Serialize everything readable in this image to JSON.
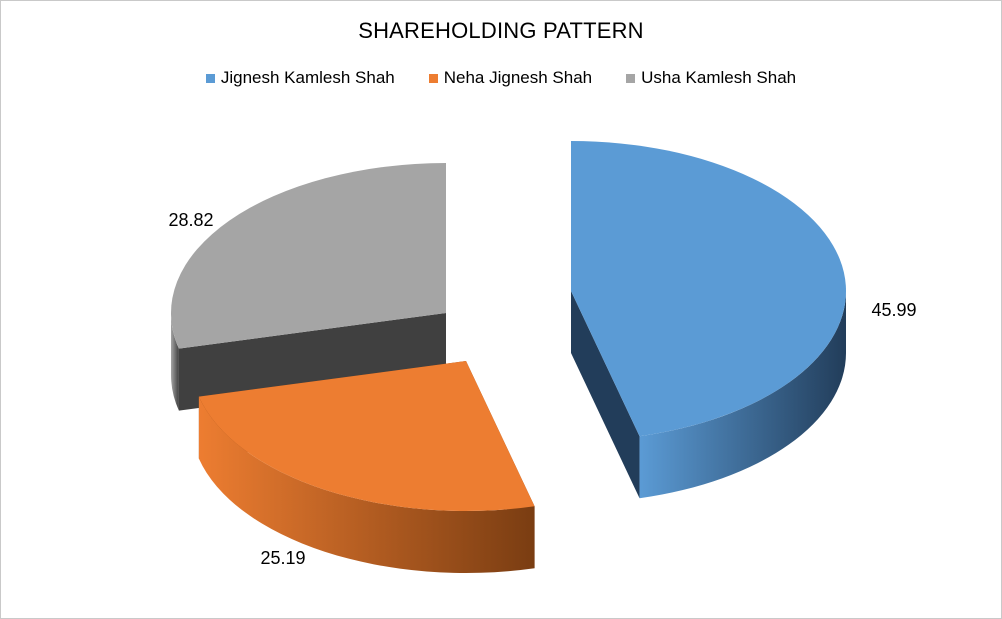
{
  "chart_data": {
    "type": "pie",
    "title": "SHAREHOLDING PATTERN",
    "categories": [
      "Jignesh Kamlesh Shah",
      "Neha Jignesh Shah",
      "Usha Kamlesh Shah"
    ],
    "values": [
      45.99,
      25.19,
      28.82
    ],
    "data_labels": [
      "45.99",
      "25.19",
      "28.82"
    ],
    "colors": [
      "#5b9bd5",
      "#ed7d31",
      "#a5a5a5"
    ],
    "side_colors": [
      "#223d5a",
      "#7a3d12",
      "#404040"
    ],
    "legend_position": "top",
    "style": "3d-exploded"
  }
}
